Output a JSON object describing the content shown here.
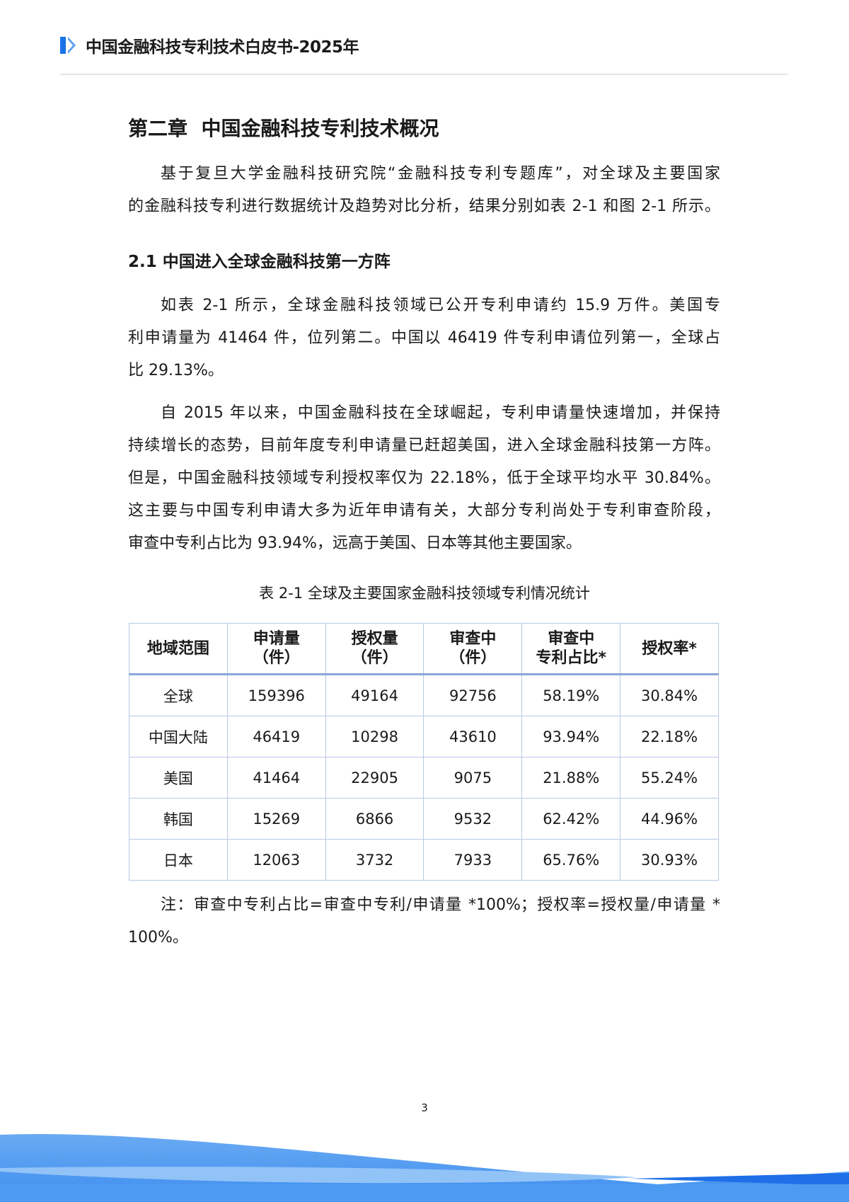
{
  "header": {
    "title": "中国金融科技专利技术白皮书-2025年",
    "accent_color": "#1a73e8"
  },
  "chapter_title": "第二章  中国金融科技专利技术概况",
  "intro_lines": [
    "基于复旦大学金融科技研究院“金融科技专利专题库”，对全球及主要国家",
    "的金融科技专利进行数据统计及趋势对比分析，结果分别如表 2-1 和图 2-1 所示。"
  ],
  "section_title": "2.1  中国进入全球金融科技第一方阵",
  "para1_lines": [
    "如表 2-1 所示，全球金融科技领域已公开专利申请约 15.9 万件。美国专",
    "利申请量为 41464 件，位列第二。中国以 46419 件专利申请位列第一，全球占",
    "比 29.13%。"
  ],
  "para2_lines": [
    "自 2015 年以来，中国金融科技在全球崛起，专利申请量快速增加，并保持",
    "持续增长的态势，目前年度专利申请量已赶超美国，进入全球金融科技第一方阵。",
    "但是，中国金融科技领域专利授权率仅为 22.18%，低于全球平均水平 30.84%。",
    "这主要与中国专利申请大多为近年申请有关，大部分专利尚处于专利审查阶段，",
    "审查中专利占比为 93.94%，远高于美国、日本等其他主要国家。"
  ],
  "table": {
    "caption": "表 2-1  全球及主要国家金融科技领域专利情况统计",
    "headers": [
      [
        "地域范围"
      ],
      [
        "申请量",
        "（件）"
      ],
      [
        "授权量",
        "（件）"
      ],
      [
        "审查中",
        "（件）"
      ],
      [
        "审查中",
        "专利占比*"
      ],
      [
        "授权率*"
      ]
    ],
    "rows": [
      [
        "全球",
        "159396",
        "49164",
        "92756",
        "58.19%",
        "30.84%"
      ],
      [
        "中国大陆",
        "46419",
        "10298",
        "43610",
        "93.94%",
        "22.18%"
      ],
      [
        "美国",
        "41464",
        "22905",
        "9075",
        "21.88%",
        "55.24%"
      ],
      [
        "韩国",
        "15269",
        "6866",
        "9532",
        "62.42%",
        "44.96%"
      ],
      [
        "日本",
        "12063",
        "3732",
        "7933",
        "65.76%",
        "30.93%"
      ]
    ]
  },
  "note_lines": [
    "注：审查中专利占比=审查中专利/申请量 *100%；授权率=授权量/申请量 *",
    "100%。"
  ],
  "page_number": "3"
}
